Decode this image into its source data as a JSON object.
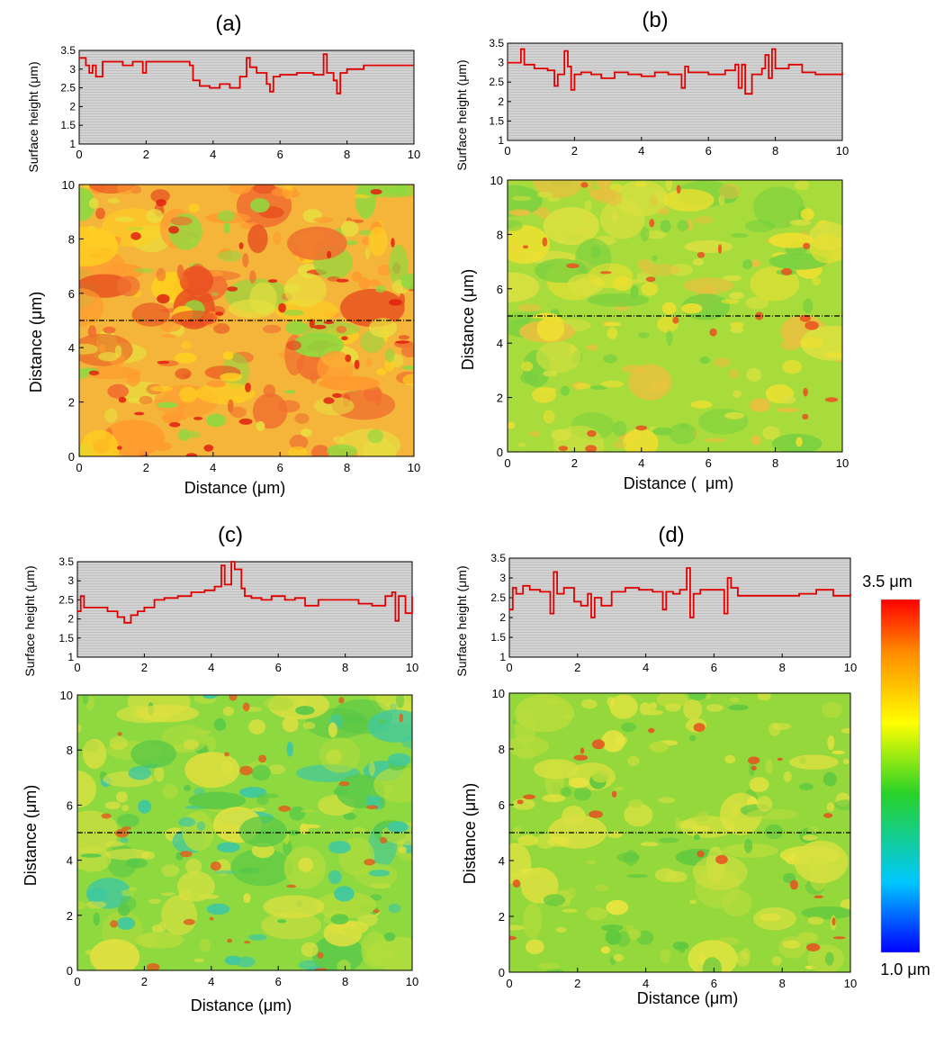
{
  "panels": [
    {
      "id": "a",
      "label": "(a)",
      "profile_ylabel": "Surface height (μm)",
      "map_ylabel": "Distance (μm)",
      "map_xlabel": "Distance (μm)"
    },
    {
      "id": "b",
      "label": "(b)",
      "profile_ylabel": "Surface height (μm)",
      "map_ylabel": "Distance (μm)",
      "map_xlabel": "Distance (  μm)"
    },
    {
      "id": "c",
      "label": "(c)",
      "profile_ylabel": "Surface height (μm)",
      "map_ylabel": "Distance (μm)",
      "map_xlabel": "Distance (μm)"
    },
    {
      "id": "d",
      "label": "(d)",
      "profile_ylabel": "Surface height (μm)",
      "map_ylabel": "Distance (μm)",
      "map_xlabel": "Distance (μm)"
    }
  ],
  "colorbar": {
    "max_label": "3.5 μm",
    "min_label": "1.0 μm",
    "colors": [
      "#0000ff",
      "#00c8ff",
      "#28d228",
      "#ffff00",
      "#ff8c00",
      "#ff0000"
    ]
  },
  "chart_data": [
    {
      "panel": "a",
      "type": "line",
      "xlabel": "",
      "ylabel": "Surface height (μm)",
      "xlim": [
        0,
        10
      ],
      "ylim": [
        1.0,
        3.5
      ],
      "xticks": [
        0,
        2,
        4,
        6,
        8,
        10
      ],
      "yticks": [
        1.0,
        1.5,
        2.0,
        2.5,
        3.0,
        3.5
      ],
      "line_color": "#e00000",
      "x": [
        0,
        0.2,
        0.3,
        0.4,
        0.5,
        0.7,
        1.0,
        1.3,
        1.6,
        1.9,
        2.0,
        2.4,
        2.8,
        3.2,
        3.3,
        3.4,
        3.6,
        3.9,
        4.2,
        4.5,
        4.8,
        5.0,
        5.1,
        5.3,
        5.6,
        5.7,
        5.8,
        6.0,
        6.5,
        7.0,
        7.3,
        7.4,
        7.6,
        7.7,
        7.8,
        8.0,
        8.5,
        9.0,
        9.5,
        10.0
      ],
      "y": [
        3.3,
        3.1,
        2.9,
        3.1,
        2.8,
        3.2,
        3.2,
        3.1,
        3.2,
        2.9,
        3.2,
        3.2,
        3.2,
        3.2,
        3.1,
        2.7,
        2.55,
        2.5,
        2.6,
        2.5,
        2.8,
        3.3,
        3.05,
        2.9,
        2.6,
        2.4,
        2.8,
        2.85,
        2.9,
        2.85,
        3.4,
        2.9,
        2.7,
        2.35,
        2.9,
        3.0,
        3.1,
        3.1,
        3.1,
        3.1
      ]
    },
    {
      "panel": "b",
      "type": "line",
      "xlabel": "",
      "ylabel": "Surface height (μm)",
      "xlim": [
        0,
        10
      ],
      "ylim": [
        1.0,
        3.5
      ],
      "xticks": [
        0,
        2,
        4,
        6,
        8,
        10
      ],
      "yticks": [
        1.0,
        1.5,
        2.0,
        2.5,
        3.0,
        3.5
      ],
      "line_color": "#e00000",
      "x": [
        0,
        0.3,
        0.4,
        0.5,
        0.8,
        1.2,
        1.4,
        1.5,
        1.7,
        1.8,
        1.9,
        2.0,
        2.2,
        2.5,
        2.8,
        3.2,
        3.6,
        4.0,
        4.4,
        4.8,
        5.2,
        5.3,
        5.4,
        6.0,
        6.5,
        6.8,
        6.9,
        7.0,
        7.1,
        7.3,
        7.6,
        7.7,
        7.8,
        7.9,
        8.0,
        8.4,
        8.8,
        9.2,
        9.6,
        10.0
      ],
      "y": [
        3.0,
        3.0,
        3.35,
        2.95,
        2.85,
        2.8,
        2.4,
        2.7,
        3.3,
        2.9,
        2.3,
        2.7,
        2.75,
        2.7,
        2.6,
        2.75,
        2.7,
        2.65,
        2.75,
        2.7,
        2.35,
        2.9,
        2.75,
        2.7,
        2.8,
        2.95,
        2.35,
        2.95,
        2.2,
        2.7,
        2.85,
        3.2,
        2.6,
        3.35,
        2.85,
        2.95,
        2.75,
        2.7,
        2.7,
        2.75
      ]
    },
    {
      "panel": "c",
      "type": "line",
      "xlabel": "",
      "ylabel": "Surface height (μm)",
      "xlim": [
        0,
        10
      ],
      "ylim": [
        1.0,
        3.5
      ],
      "xticks": [
        0,
        2,
        4,
        6,
        8,
        10
      ],
      "yticks": [
        1.0,
        1.5,
        2.0,
        2.5,
        3.0,
        3.5
      ],
      "line_color": "#e00000",
      "x": [
        0,
        0.1,
        0.2,
        0.4,
        0.6,
        0.9,
        1.2,
        1.4,
        1.6,
        1.8,
        2.0,
        2.3,
        2.6,
        3.0,
        3.4,
        3.8,
        4.1,
        4.3,
        4.4,
        4.6,
        4.7,
        4.9,
        5.0,
        5.2,
        5.5,
        5.8,
        6.2,
        6.5,
        6.8,
        7.2,
        7.6,
        8.0,
        8.4,
        8.8,
        9.2,
        9.4,
        9.5,
        9.6,
        9.8,
        10.0
      ],
      "y": [
        2.2,
        2.6,
        2.3,
        2.3,
        2.3,
        2.2,
        2.05,
        1.9,
        2.1,
        2.2,
        2.3,
        2.5,
        2.55,
        2.6,
        2.7,
        2.75,
        2.85,
        3.4,
        2.9,
        3.5,
        3.3,
        2.8,
        2.6,
        2.55,
        2.5,
        2.6,
        2.5,
        2.55,
        2.35,
        2.5,
        2.5,
        2.5,
        2.4,
        2.35,
        2.6,
        2.7,
        1.95,
        2.6,
        2.15,
        2.6
      ]
    },
    {
      "panel": "d",
      "type": "line",
      "xlabel": "",
      "ylabel": "Surface height (μm)",
      "xlim": [
        0,
        10
      ],
      "ylim": [
        1.0,
        3.5
      ],
      "xticks": [
        0,
        2,
        4,
        6,
        8,
        10
      ],
      "yticks": [
        1.0,
        1.5,
        2.0,
        2.5,
        3.0,
        3.5
      ],
      "line_color": "#e00000",
      "x": [
        0,
        0.1,
        0.2,
        0.4,
        0.6,
        0.9,
        1.2,
        1.3,
        1.4,
        1.6,
        1.9,
        2.1,
        2.3,
        2.4,
        2.5,
        2.7,
        3.0,
        3.4,
        3.8,
        4.2,
        4.5,
        4.6,
        4.8,
        5.0,
        5.2,
        5.3,
        5.4,
        5.6,
        6.0,
        6.3,
        6.4,
        6.5,
        6.7,
        7.0,
        7.5,
        8.0,
        8.5,
        9.0,
        9.5,
        10.0
      ],
      "y": [
        2.2,
        2.75,
        2.6,
        2.8,
        2.7,
        2.65,
        2.1,
        3.15,
        2.6,
        2.75,
        2.4,
        2.3,
        2.6,
        2.0,
        2.5,
        2.3,
        2.65,
        2.75,
        2.7,
        2.65,
        2.2,
        2.65,
        2.6,
        2.7,
        3.25,
        2.0,
        2.6,
        2.7,
        2.7,
        2.1,
        3.0,
        2.75,
        2.55,
        2.55,
        2.55,
        2.55,
        2.6,
        2.7,
        2.55,
        2.6
      ]
    },
    {
      "panel": "a",
      "type": "heatmap",
      "xlabel": "Distance (μm)",
      "ylabel": "Distance (μm)",
      "xlim": [
        0,
        10
      ],
      "ylim": [
        0,
        10
      ],
      "xticks": [
        0,
        2,
        4,
        6,
        8,
        10
      ],
      "yticks": [
        0,
        2,
        4,
        6,
        8,
        10
      ],
      "profile_line_y": 5,
      "value_range": [
        1.0,
        3.5
      ],
      "base_color": "#f4b53a",
      "patch_colors": [
        "#e85020",
        "#f07030",
        "#ffd020",
        "#e8e040",
        "#ff9a30",
        "#90d840"
      ],
      "accent_color": "#e02010",
      "detail": 0.6
    },
    {
      "panel": "b",
      "type": "heatmap",
      "xlabel": "Distance (  μm)",
      "ylabel": "Distance (μm)",
      "xlim": [
        0,
        10
      ],
      "ylim": [
        0,
        10
      ],
      "xticks": [
        0,
        2,
        4,
        6,
        8,
        10
      ],
      "yticks": [
        0,
        2,
        4,
        6,
        8,
        10
      ],
      "profile_line_y": 5,
      "value_range": [
        1.0,
        3.5
      ],
      "base_color": "#a8dc3c",
      "patch_colors": [
        "#d8e040",
        "#f0e030",
        "#78d040",
        "#e8c040"
      ],
      "accent_color": "#ea5020",
      "detail": 0.35
    },
    {
      "panel": "c",
      "type": "heatmap",
      "xlabel": "Distance (μm)",
      "ylabel": "Distance (μm)",
      "xlim": [
        0,
        10
      ],
      "ylim": [
        0,
        10
      ],
      "xticks": [
        0,
        2,
        4,
        6,
        8,
        10
      ],
      "yticks": [
        0,
        2,
        4,
        6,
        8,
        10
      ],
      "profile_line_y": 5,
      "value_range": [
        1.0,
        3.5
      ],
      "base_color": "#8ed840",
      "patch_colors": [
        "#d0e040",
        "#58c848",
        "#40c8a0",
        "#e0e040",
        "#b0dc3c"
      ],
      "accent_color": "#e06020",
      "detail": 0.45
    },
    {
      "panel": "d",
      "type": "heatmap",
      "xlabel": "Distance (μm)",
      "ylabel": "Distance (μm)",
      "xlim": [
        0,
        10
      ],
      "ylim": [
        0,
        10
      ],
      "xticks": [
        0,
        2,
        4,
        6,
        8,
        10
      ],
      "yticks": [
        0,
        2,
        4,
        6,
        8,
        10
      ],
      "profile_line_y": 5,
      "value_range": [
        1.0,
        3.5
      ],
      "base_color": "#94d83c",
      "patch_colors": [
        "#d8e040",
        "#60c840",
        "#e8e440",
        "#b8dc3c"
      ],
      "accent_color": "#e85020",
      "detail": 0.3
    }
  ]
}
